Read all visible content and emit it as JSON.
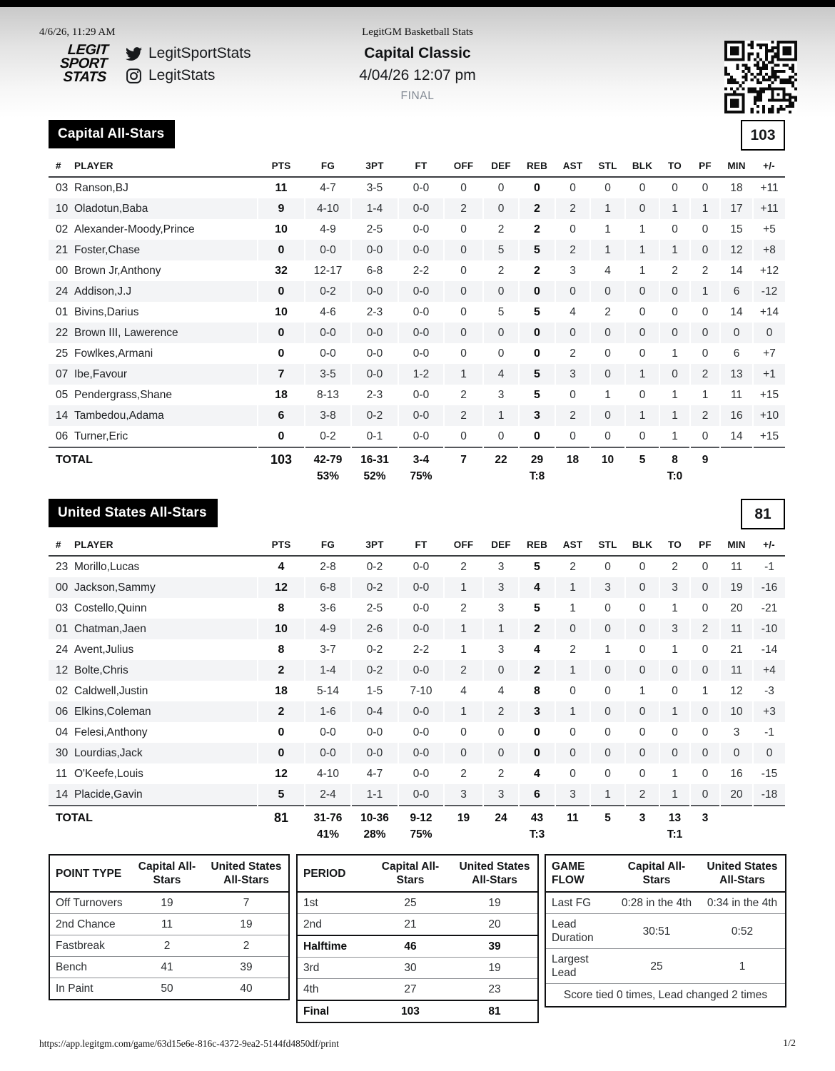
{
  "print_header": {
    "datetime": "4/6/26, 11:29 AM",
    "doc_title": "LegitGM Basketball Stats"
  },
  "masthead": {
    "logo_lines": [
      "LEGIT",
      "SPORT",
      "STATS"
    ],
    "twitter_icon": "twitter-icon",
    "twitter_handle": "LegitSportStats",
    "instagram_icon": "instagram-icon",
    "instagram_handle": "LegitStats",
    "game_title": "Capital Classic",
    "game_datetime": "4/04/26 12:07 pm",
    "status": "FINAL",
    "qr_icon": "qr-code"
  },
  "box_score": {
    "num_label": "#",
    "player_label": "PLAYER",
    "total_label": "TOTAL",
    "columns": [
      "PTS",
      "FG",
      "3PT",
      "FT",
      "OFF",
      "DEF",
      "REB",
      "AST",
      "STL",
      "BLK",
      "TO",
      "PF",
      "MIN",
      "+/-"
    ]
  },
  "teams": [
    {
      "name": "Capital All-Stars",
      "score": "103",
      "players": [
        {
          "num": "03",
          "name": "Ranson,BJ",
          "stats": [
            "11",
            "4-7",
            "3-5",
            "0-0",
            "0",
            "0",
            "0",
            "0",
            "0",
            "0",
            "0",
            "0",
            "18",
            "+11"
          ]
        },
        {
          "num": "10",
          "name": "Oladotun,Baba",
          "stats": [
            "9",
            "4-10",
            "1-4",
            "0-0",
            "2",
            "0",
            "2",
            "2",
            "1",
            "0",
            "1",
            "1",
            "17",
            "+11"
          ]
        },
        {
          "num": "02",
          "name": "Alexander-Moody,Prince",
          "stats": [
            "10",
            "4-9",
            "2-5",
            "0-0",
            "0",
            "2",
            "2",
            "0",
            "1",
            "1",
            "0",
            "0",
            "15",
            "+5"
          ]
        },
        {
          "num": "21",
          "name": "Foster,Chase",
          "stats": [
            "0",
            "0-0",
            "0-0",
            "0-0",
            "0",
            "5",
            "5",
            "2",
            "1",
            "1",
            "1",
            "0",
            "12",
            "+8"
          ]
        },
        {
          "num": "00",
          "name": "Brown Jr,Anthony",
          "stats": [
            "32",
            "12-17",
            "6-8",
            "2-2",
            "0",
            "2",
            "2",
            "3",
            "4",
            "1",
            "2",
            "2",
            "14",
            "+12"
          ]
        },
        {
          "num": "24",
          "name": "Addison,J.J",
          "stats": [
            "0",
            "0-2",
            "0-0",
            "0-0",
            "0",
            "0",
            "0",
            "0",
            "0",
            "0",
            "0",
            "1",
            "6",
            "-12"
          ]
        },
        {
          "num": "01",
          "name": "Bivins,Darius",
          "stats": [
            "10",
            "4-6",
            "2-3",
            "0-0",
            "0",
            "5",
            "5",
            "4",
            "2",
            "0",
            "0",
            "0",
            "14",
            "+14"
          ]
        },
        {
          "num": "22",
          "name": "Brown III, Lawerence",
          "stats": [
            "0",
            "0-0",
            "0-0",
            "0-0",
            "0",
            "0",
            "0",
            "0",
            "0",
            "0",
            "0",
            "0",
            "0",
            "0"
          ]
        },
        {
          "num": "25",
          "name": "Fowlkes,Armani",
          "stats": [
            "0",
            "0-0",
            "0-0",
            "0-0",
            "0",
            "0",
            "0",
            "2",
            "0",
            "0",
            "1",
            "0",
            "6",
            "+7"
          ]
        },
        {
          "num": "07",
          "name": "Ibe,Favour",
          "stats": [
            "7",
            "3-5",
            "0-0",
            "1-2",
            "1",
            "4",
            "5",
            "3",
            "0",
            "1",
            "0",
            "2",
            "13",
            "+1"
          ]
        },
        {
          "num": "05",
          "name": "Pendergrass,Shane",
          "stats": [
            "18",
            "8-13",
            "2-3",
            "0-0",
            "2",
            "3",
            "5",
            "0",
            "1",
            "0",
            "1",
            "1",
            "11",
            "+15"
          ]
        },
        {
          "num": "14",
          "name": "Tambedou,Adama",
          "stats": [
            "6",
            "3-8",
            "0-2",
            "0-0",
            "2",
            "1",
            "3",
            "2",
            "0",
            "1",
            "1",
            "2",
            "16",
            "+10"
          ]
        },
        {
          "num": "06",
          "name": "Turner,Eric",
          "stats": [
            "0",
            "0-2",
            "0-1",
            "0-0",
            "0",
            "0",
            "0",
            "0",
            "0",
            "0",
            "1",
            "0",
            "14",
            "+15"
          ]
        }
      ],
      "total": [
        "103",
        "42-79",
        "16-31",
        "3-4",
        "7",
        "22",
        "29",
        "18",
        "10",
        "5",
        "8",
        "9",
        "",
        ""
      ],
      "total_pct": [
        "",
        "53%",
        "52%",
        "75%",
        "",
        "",
        "T:8",
        "",
        "",
        "",
        "T:0",
        "",
        "",
        ""
      ]
    },
    {
      "name": "United States All-Stars",
      "score": "81",
      "players": [
        {
          "num": "23",
          "name": "Morillo,Lucas",
          "stats": [
            "4",
            "2-8",
            "0-2",
            "0-0",
            "2",
            "3",
            "5",
            "2",
            "0",
            "0",
            "2",
            "0",
            "11",
            "-1"
          ]
        },
        {
          "num": "00",
          "name": "Jackson,Sammy",
          "stats": [
            "12",
            "6-8",
            "0-2",
            "0-0",
            "1",
            "3",
            "4",
            "1",
            "3",
            "0",
            "3",
            "0",
            "19",
            "-16"
          ]
        },
        {
          "num": "03",
          "name": "Costello,Quinn",
          "stats": [
            "8",
            "3-6",
            "2-5",
            "0-0",
            "2",
            "3",
            "5",
            "1",
            "0",
            "0",
            "1",
            "0",
            "20",
            "-21"
          ]
        },
        {
          "num": "01",
          "name": "Chatman,Jaen",
          "stats": [
            "10",
            "4-9",
            "2-6",
            "0-0",
            "1",
            "1",
            "2",
            "0",
            "0",
            "0",
            "3",
            "2",
            "11",
            "-10"
          ]
        },
        {
          "num": "24",
          "name": "Avent,Julius",
          "stats": [
            "8",
            "3-7",
            "0-2",
            "2-2",
            "1",
            "3",
            "4",
            "2",
            "1",
            "0",
            "1",
            "0",
            "21",
            "-14"
          ]
        },
        {
          "num": "12",
          "name": "Bolte,Chris",
          "stats": [
            "2",
            "1-4",
            "0-2",
            "0-0",
            "2",
            "0",
            "2",
            "1",
            "0",
            "0",
            "0",
            "0",
            "11",
            "+4"
          ]
        },
        {
          "num": "02",
          "name": "Caldwell,Justin",
          "stats": [
            "18",
            "5-14",
            "1-5",
            "7-10",
            "4",
            "4",
            "8",
            "0",
            "0",
            "1",
            "0",
            "1",
            "12",
            "-3"
          ]
        },
        {
          "num": "06",
          "name": "Elkins,Coleman",
          "stats": [
            "2",
            "1-6",
            "0-4",
            "0-0",
            "1",
            "2",
            "3",
            "1",
            "0",
            "0",
            "1",
            "0",
            "10",
            "+3"
          ]
        },
        {
          "num": "04",
          "name": "Felesi,Anthony",
          "stats": [
            "0",
            "0-0",
            "0-0",
            "0-0",
            "0",
            "0",
            "0",
            "0",
            "0",
            "0",
            "0",
            "0",
            "3",
            "-1"
          ]
        },
        {
          "num": "30",
          "name": "Lourdias,Jack",
          "stats": [
            "0",
            "0-0",
            "0-0",
            "0-0",
            "0",
            "0",
            "0",
            "0",
            "0",
            "0",
            "0",
            "0",
            "0",
            "0"
          ]
        },
        {
          "num": "11",
          "name": "O'Keefe,Louis",
          "stats": [
            "12",
            "4-10",
            "4-7",
            "0-0",
            "2",
            "2",
            "4",
            "0",
            "0",
            "0",
            "1",
            "0",
            "16",
            "-15"
          ]
        },
        {
          "num": "14",
          "name": "Placide,Gavin",
          "stats": [
            "5",
            "2-4",
            "1-1",
            "0-0",
            "3",
            "3",
            "6",
            "3",
            "1",
            "2",
            "1",
            "0",
            "20",
            "-18"
          ]
        }
      ],
      "total": [
        "81",
        "31-76",
        "10-36",
        "9-12",
        "19",
        "24",
        "43",
        "11",
        "5",
        "3",
        "13",
        "3",
        "",
        ""
      ],
      "total_pct": [
        "",
        "41%",
        "28%",
        "75%",
        "",
        "",
        "T:3",
        "",
        "",
        "",
        "T:1",
        "",
        "",
        ""
      ]
    }
  ],
  "point_type_table": {
    "header": [
      "POINT TYPE",
      "Capital All-Stars",
      "United States All-Stars"
    ],
    "rows": [
      [
        "Off Turnovers",
        "19",
        "7"
      ],
      [
        "2nd Chance",
        "11",
        "19"
      ],
      [
        "Fastbreak",
        "2",
        "2"
      ],
      [
        "Bench",
        "41",
        "39"
      ],
      [
        "In Paint",
        "50",
        "40"
      ]
    ]
  },
  "period_table": {
    "header": [
      "PERIOD",
      "Capital All-Stars",
      "United States All-Stars"
    ],
    "rows": [
      [
        "1st",
        "25",
        "19"
      ],
      [
        "2nd",
        "21",
        "20"
      ],
      [
        "Halftime",
        "46",
        "39"
      ],
      [
        "3rd",
        "30",
        "19"
      ],
      [
        "4th",
        "27",
        "23"
      ],
      [
        "Final",
        "103",
        "81"
      ]
    ],
    "bold_rows": [
      2,
      5
    ]
  },
  "game_flow_table": {
    "header": [
      "GAME FLOW",
      "Capital All-Stars",
      "United States All-Stars"
    ],
    "rows": [
      [
        "Last FG",
        "0:28 in the 4th",
        "0:34 in the 4th"
      ],
      [
        "Lead Duration",
        "30:51",
        "0:52"
      ],
      [
        "Largest Lead",
        "25",
        "1"
      ]
    ],
    "footer": "Score tied 0 times, Lead changed 2 times"
  },
  "page_footer": {
    "url": "https://app.legitgm.com/game/63d15e6e-816c-4372-9ea2-5144fd4850df/print",
    "page": "1/2"
  },
  "colors": {
    "badge_bg": "#000000",
    "row_stripe": "#f3f4f6",
    "status_gray": "#828993"
  }
}
